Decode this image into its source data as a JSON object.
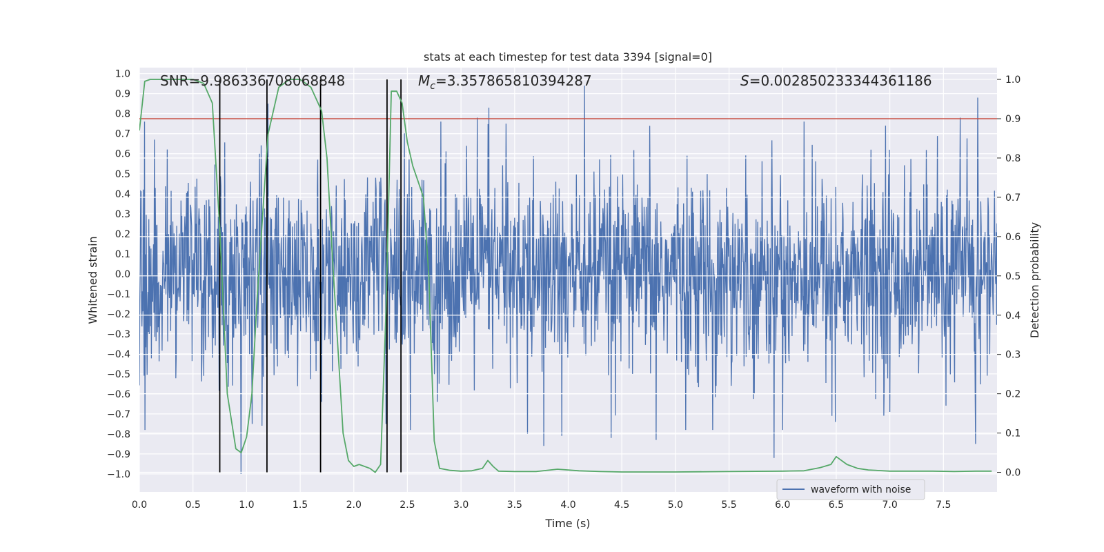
{
  "chart_data": {
    "type": "line",
    "title": "stats at each timestep for test data 3394 [signal=0]",
    "xlabel": "Time (s)",
    "ylabel_left": "Whitened strain",
    "ylabel_right": "Detection probability",
    "xlim": [
      0.0,
      8.0
    ],
    "ylim_left": [
      -1.09,
      1.03
    ],
    "ylim_right": [
      -0.05,
      1.03
    ],
    "x_ticks": [
      "0.0",
      "0.5",
      "1.0",
      "1.5",
      "2.0",
      "2.5",
      "3.0",
      "3.5",
      "4.0",
      "4.5",
      "5.0",
      "5.5",
      "6.0",
      "6.5",
      "7.0",
      "7.5"
    ],
    "y_ticks_left": [
      "1.0",
      "0.9",
      "0.8",
      "0.7",
      "0.6",
      "0.5",
      "0.4",
      "0.3",
      "0.2",
      "0.1",
      "0.0",
      "−0.1",
      "−0.2",
      "−0.3",
      "−0.4",
      "−0.5",
      "−0.6",
      "−0.7",
      "−0.8",
      "−0.9",
      "−1.0"
    ],
    "y_ticks_right": [
      "1.0",
      "0.9",
      "0.8",
      "0.7",
      "0.6",
      "0.5",
      "0.4",
      "0.3",
      "0.2",
      "0.1",
      "0.0"
    ],
    "annotations": {
      "snr": "SNR=9.986336708068848",
      "mc_symbol": "M",
      "mc_sub": "c",
      "mc_value": "=3.357865810394287",
      "s_symbol": "S",
      "s_value": "=0.002850233344361186"
    },
    "threshold": {
      "value": 0.9,
      "axis": "right",
      "color": "#c0392b"
    },
    "vertical_lines": [
      0.75,
      1.19,
      1.69,
      2.31,
      2.44
    ],
    "series": [
      {
        "name": "waveform with noise",
        "axis": "left",
        "color": "#4c72b0",
        "kind": "noise",
        "dt": 0.004,
        "typical_amplitude": 0.38,
        "peaks": [
          [
            0.95,
            -1.0
          ],
          [
            4.15,
            0.94
          ],
          [
            7.82,
            0.88
          ],
          [
            5.92,
            -0.92
          ],
          [
            3.26,
            0.83
          ],
          [
            1.2,
            0.85
          ],
          [
            7.8,
            -0.85
          ],
          [
            1.05,
            -0.75
          ],
          [
            4.4,
            -0.82
          ],
          [
            2.3,
            -0.75
          ],
          [
            3.94,
            -0.81
          ],
          [
            6.96,
            0.74
          ],
          [
            1.7,
            -0.64
          ],
          [
            2.78,
            -0.64
          ],
          [
            3.62,
            -0.8
          ],
          [
            4.82,
            -0.83
          ],
          [
            5.35,
            -0.78
          ],
          [
            6.49,
            -0.74
          ],
          [
            7.0,
            -0.69
          ],
          [
            0.14,
            0.67
          ],
          [
            6.2,
            0.76
          ],
          [
            2.81,
            0.76
          ],
          [
            3.15,
            0.78
          ],
          [
            3.42,
            0.75
          ],
          [
            3.77,
            -0.86
          ]
        ]
      },
      {
        "name": "detection probability",
        "axis": "right",
        "color": "#55a868",
        "x": [
          0.0,
          0.05,
          0.1,
          0.2,
          0.3,
          0.4,
          0.5,
          0.6,
          0.68,
          0.75,
          0.82,
          0.9,
          0.95,
          1.0,
          1.05,
          1.1,
          1.2,
          1.3,
          1.4,
          1.5,
          1.6,
          1.7,
          1.75,
          1.8,
          1.9,
          1.95,
          2.0,
          2.05,
          2.15,
          2.2,
          2.25,
          2.3,
          2.35,
          2.4,
          2.45,
          2.5,
          2.55,
          2.6,
          2.65,
          2.7,
          2.75,
          2.8,
          2.9,
          3.0,
          3.1,
          3.2,
          3.25,
          3.3,
          3.35,
          3.5,
          3.7,
          3.9,
          4.1,
          4.3,
          4.5,
          5.0,
          5.5,
          6.0,
          6.2,
          6.35,
          6.45,
          6.5,
          6.6,
          6.7,
          6.8,
          7.0,
          7.4,
          7.6,
          7.8,
          7.95
        ],
        "y": [
          0.87,
          0.995,
          1.0,
          1.0,
          1.0,
          1.0,
          1.0,
          0.99,
          0.94,
          0.62,
          0.2,
          0.06,
          0.05,
          0.09,
          0.2,
          0.45,
          0.86,
          0.98,
          1.0,
          1.0,
          0.98,
          0.92,
          0.8,
          0.55,
          0.1,
          0.03,
          0.015,
          0.02,
          0.01,
          0.0,
          0.02,
          0.41,
          0.97,
          0.97,
          0.94,
          0.84,
          0.78,
          0.74,
          0.7,
          0.5,
          0.08,
          0.01,
          0.005,
          0.003,
          0.004,
          0.01,
          0.03,
          0.015,
          0.003,
          0.002,
          0.002,
          0.008,
          0.004,
          0.002,
          0.001,
          0.001,
          0.002,
          0.003,
          0.004,
          0.012,
          0.02,
          0.04,
          0.02,
          0.01,
          0.006,
          0.003,
          0.003,
          0.002,
          0.003,
          0.003
        ]
      }
    ],
    "legend": {
      "label": "waveform with noise",
      "location": "lower-center-right"
    }
  }
}
